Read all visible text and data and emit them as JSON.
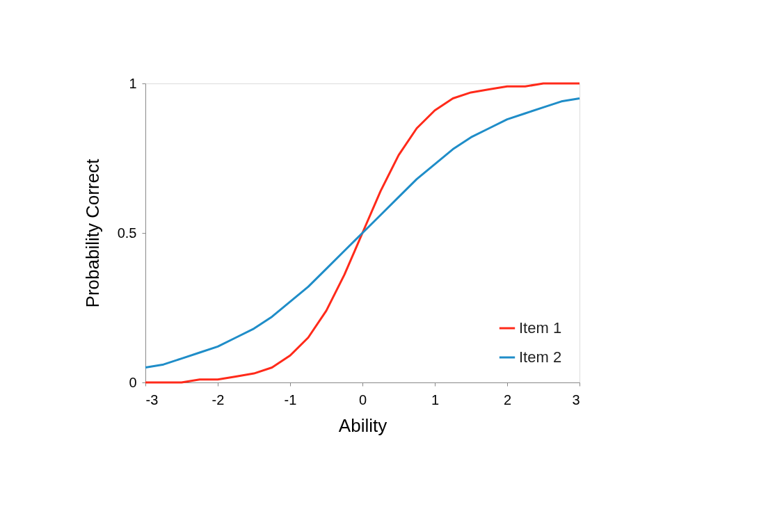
{
  "chart_data": {
    "type": "line",
    "xlabel": "Ability",
    "ylabel": "Probability  Correct",
    "x": [
      -3,
      -2.75,
      -2.5,
      -2.25,
      -2,
      -1.75,
      -1.5,
      -1.25,
      -1,
      -0.75,
      -0.5,
      -0.25,
      0,
      0.25,
      0.5,
      0.75,
      1,
      1.25,
      1.5,
      1.75,
      2,
      2.25,
      2.5,
      2.75,
      3
    ],
    "series": [
      {
        "name": "Item 1",
        "color": "#ff2a1a",
        "values": [
          0,
          0,
          0,
          0.01,
          0.01,
          0.02,
          0.03,
          0.05,
          0.09,
          0.15,
          0.24,
          0.36,
          0.5,
          0.64,
          0.76,
          0.85,
          0.91,
          0.95,
          0.97,
          0.98,
          0.99,
          0.99,
          1,
          1,
          1
        ]
      },
      {
        "name": "Item 2",
        "color": "#1f8dc8",
        "values": [
          0.05,
          0.06,
          0.08,
          0.1,
          0.12,
          0.15,
          0.18,
          0.22,
          0.27,
          0.32,
          0.38,
          0.44,
          0.5,
          0.56,
          0.62,
          0.68,
          0.73,
          0.78,
          0.82,
          0.85,
          0.88,
          0.9,
          0.92,
          0.94,
          0.95
        ]
      }
    ],
    "xlim": [
      -3,
      3
    ],
    "xticks": [
      -3,
      -2,
      -1,
      0,
      1,
      2,
      3
    ],
    "ylim": [
      0,
      1
    ],
    "yticks": [
      0,
      0.5,
      1
    ],
    "grid": false,
    "legend": "bottom right",
    "marker": "none",
    "line_style": "solid"
  }
}
